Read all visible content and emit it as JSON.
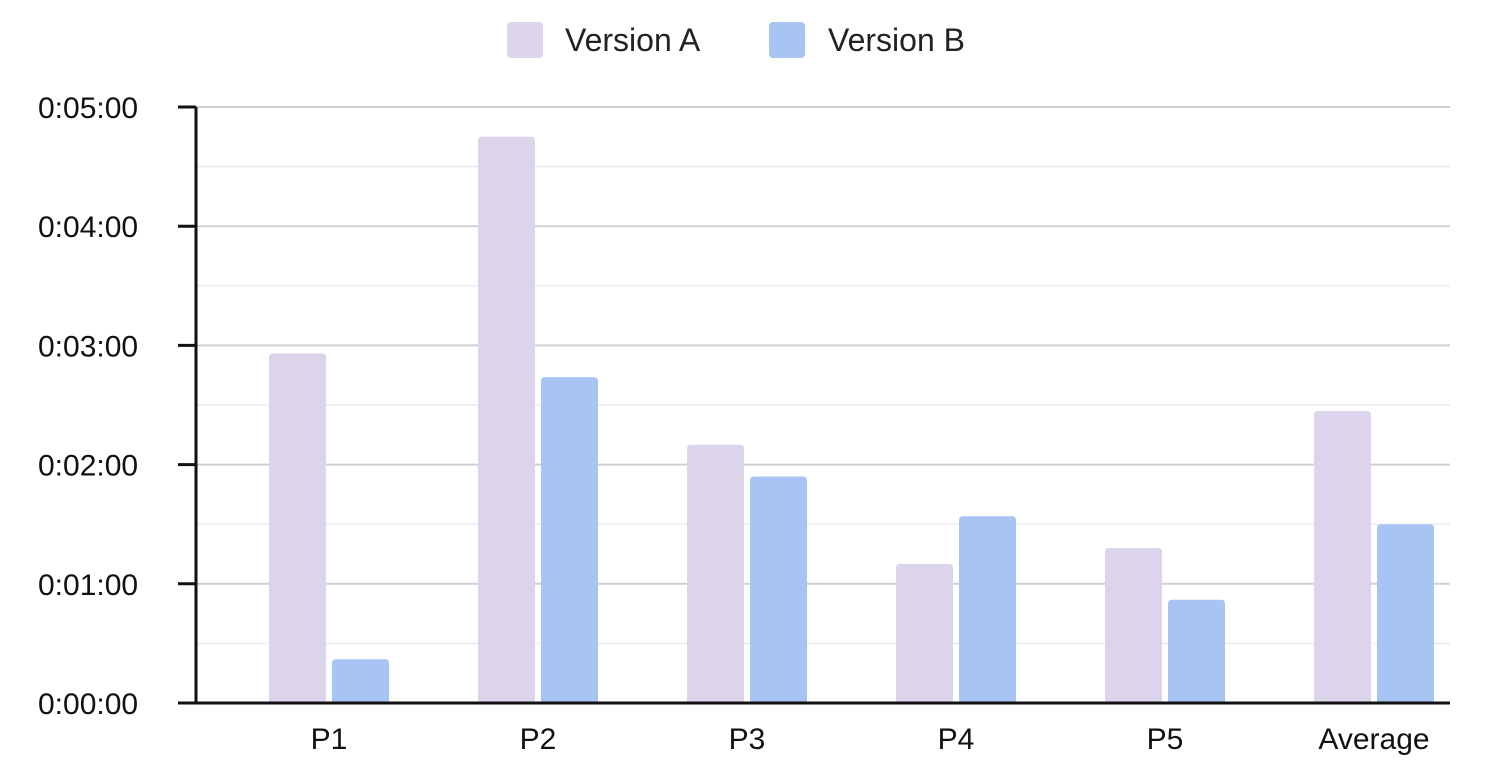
{
  "chart_data": {
    "type": "bar",
    "title": "",
    "xlabel": "",
    "ylabel": "",
    "categories": [
      "P1",
      "P2",
      "P3",
      "P4",
      "P5",
      "Average"
    ],
    "series": [
      {
        "name": "Version A",
        "color": "#dcd4ea",
        "values": [
          176,
          285,
          130,
          70,
          78,
          147
        ]
      },
      {
        "name": "Version B",
        "color": "#a8c4f2",
        "values": [
          22,
          164,
          114,
          94,
          52,
          90
        ]
      }
    ],
    "ylim": [
      0,
      300
    ],
    "y_tick_values": [
      0,
      60,
      120,
      180,
      240,
      300
    ],
    "y_tick_labels": [
      "0:00:00",
      "0:01:00",
      "0:02:00",
      "0:03:00",
      "0:04:00",
      "0:05:00"
    ],
    "y_unit": "seconds (h:mm:ss)",
    "grid": true,
    "minor_grid": true,
    "legend_position": "top-center"
  }
}
